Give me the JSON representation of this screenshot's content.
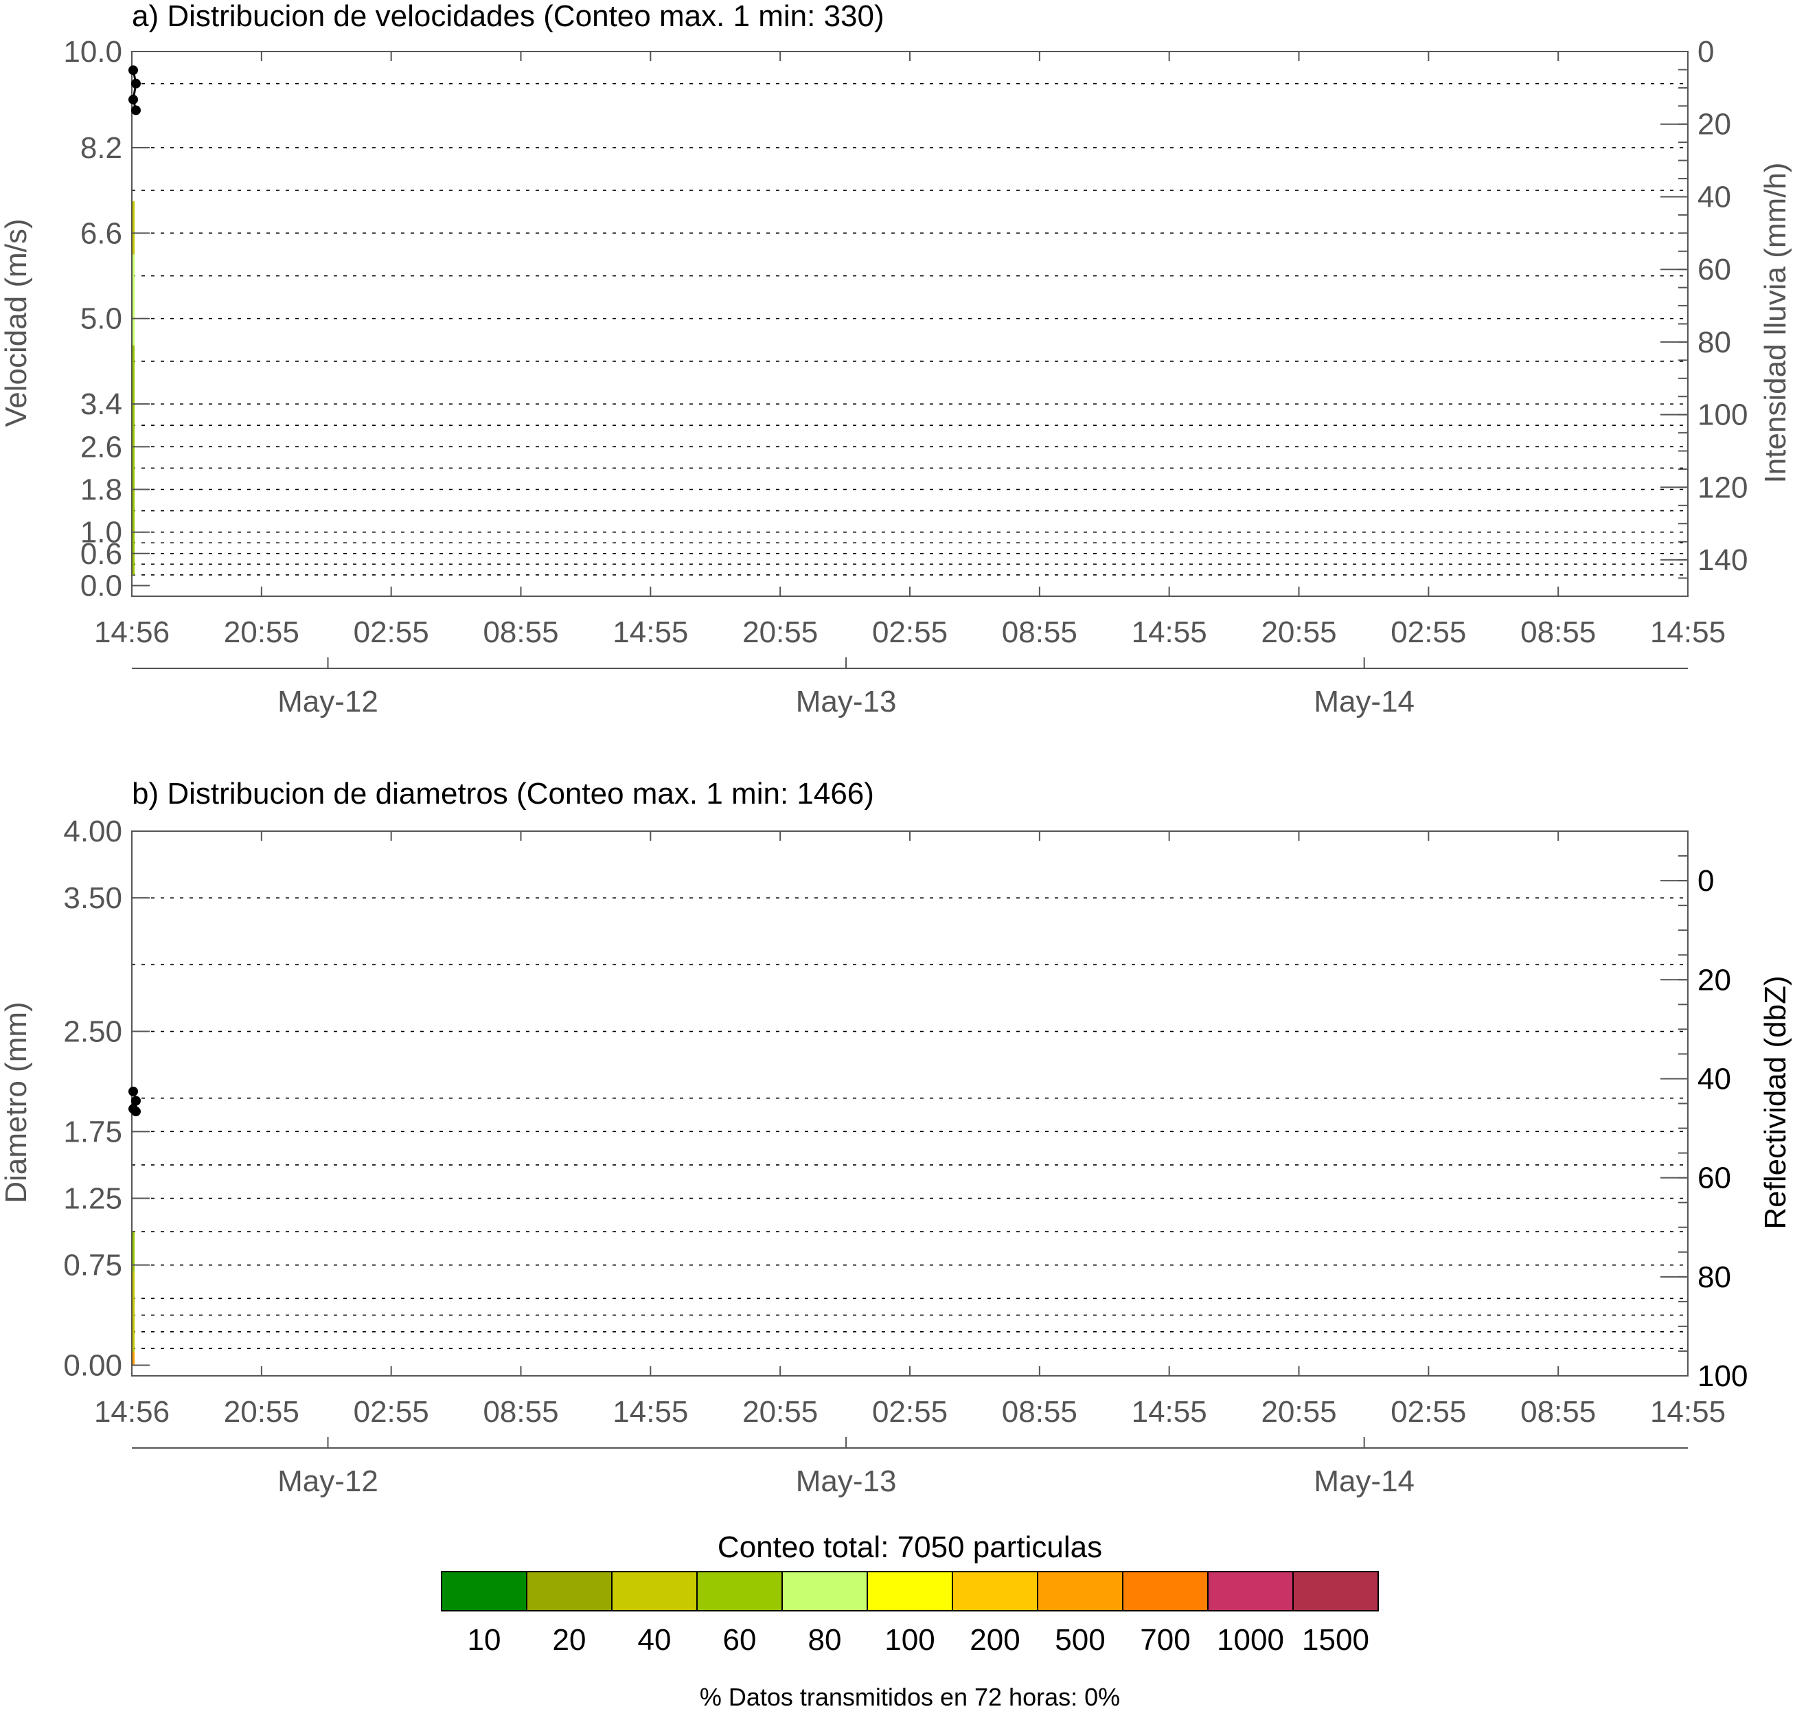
{
  "colors": {
    "axis_gray": "#555555",
    "text_gray": "#555555",
    "text_dark": "#000000",
    "grid": "#000000",
    "trace_dark": "#000000"
  },
  "chart_data": [
    {
      "type": "heatmap",
      "title": "a) Distribucion de velocidades (Conteo max. 1 min: 330)",
      "ylabel": "Velocidad (m/s)",
      "y2label": "Intensidad lluvia (mm/h)",
      "yticks": [
        {
          "label": "10.0",
          "value": 10.0
        },
        {
          "label": "8.2",
          "value": 8.2
        },
        {
          "label": "6.6",
          "value": 6.6
        },
        {
          "label": "5.0",
          "value": 5.0
        },
        {
          "label": "3.4",
          "value": 3.4
        },
        {
          "label": "2.6",
          "value": 2.6
        },
        {
          "label": "1.8",
          "value": 1.8
        },
        {
          "label": "1.0",
          "value": 1.0
        },
        {
          "label": "0.6",
          "value": 0.6
        },
        {
          "label": "0.0",
          "value": 0.0
        }
      ],
      "grid_values": [
        9.4,
        8.2,
        7.4,
        6.6,
        5.8,
        5.0,
        4.2,
        3.4,
        3.0,
        2.6,
        2.2,
        1.8,
        1.4,
        1.0,
        0.8,
        0.6,
        0.4,
        0.2
      ],
      "ylim": [
        -0.2,
        10.0
      ],
      "y2ticks": [
        "0",
        "20",
        "40",
        "60",
        "80",
        "100",
        "120",
        "140"
      ],
      "y2lim": [
        0,
        150
      ],
      "trace": [
        {
          "x": 0.0,
          "y": 9.65
        },
        {
          "x": 0.02,
          "y": 9.4
        },
        {
          "x": 0.0,
          "y": 9.1
        },
        {
          "x": 0.02,
          "y": 8.9
        }
      ],
      "distribution_strip": [
        {
          "y0": 0.2,
          "y1": 4.5,
          "color": "#99c700"
        },
        {
          "y0": 4.5,
          "y1": 6.2,
          "color": "#c8ff70"
        },
        {
          "y0": 6.2,
          "y1": 7.2,
          "color": "#c9c900"
        }
      ]
    },
    {
      "type": "heatmap",
      "title": "b) Distribucion de diametros (Conteo max. 1 min: 1466)",
      "ylabel": "Diametro (mm)",
      "y2label": "Reflectividad (dbZ)",
      "yticks": [
        {
          "label": "4.00",
          "value": 4.0
        },
        {
          "label": "3.50",
          "value": 3.5
        },
        {
          "label": "2.50",
          "value": 2.5
        },
        {
          "label": "1.75",
          "value": 1.75
        },
        {
          "label": "1.25",
          "value": 1.25
        },
        {
          "label": "0.75",
          "value": 0.75
        },
        {
          "label": "0.00",
          "value": 0.0
        }
      ],
      "grid_values": [
        3.5,
        3.0,
        2.5,
        2.0,
        1.75,
        1.5,
        1.25,
        1.0,
        0.75,
        0.5,
        0.375,
        0.25,
        0.125
      ],
      "ylim": [
        -0.08,
        4.0
      ],
      "y2ticks": [
        "0",
        "20",
        "40",
        "60",
        "80",
        "100"
      ],
      "y2lim": [
        -10,
        100
      ],
      "trace": [
        {
          "x": 0.0,
          "y": 2.05
        },
        {
          "x": 0.02,
          "y": 1.98
        },
        {
          "x": 0.0,
          "y": 1.92
        },
        {
          "x": 0.02,
          "y": 1.9
        }
      ],
      "distribution_strip": [
        {
          "y0": 0.0,
          "y1": 0.1,
          "color": "#ffa000"
        },
        {
          "y0": 0.1,
          "y1": 0.7,
          "color": "#c9c900"
        },
        {
          "y0": 0.7,
          "y1": 1.0,
          "color": "#99c700"
        }
      ]
    }
  ],
  "x_axis": {
    "time_labels": [
      "14:56",
      "20:55",
      "02:55",
      "08:55",
      "14:55",
      "20:55",
      "02:55",
      "08:55",
      "14:55",
      "20:55",
      "02:55",
      "08:55",
      "14:55"
    ],
    "date_labels": [
      "May-12",
      "May-13",
      "May-14"
    ],
    "date_positions": [
      0.126,
      0.459,
      0.792
    ]
  },
  "legend": {
    "title": "Conteo total: 7050 particulas",
    "bins": [
      {
        "label": "10",
        "color": "#008a00"
      },
      {
        "label": "20",
        "color": "#99a800"
      },
      {
        "label": "40",
        "color": "#c9c900"
      },
      {
        "label": "60",
        "color": "#99c700"
      },
      {
        "label": "80",
        "color": "#c8ff70"
      },
      {
        "label": "100",
        "color": "#ffff00"
      },
      {
        "label": "200",
        "color": "#ffc800"
      },
      {
        "label": "500",
        "color": "#ffa000"
      },
      {
        "label": "700",
        "color": "#ff7f00"
      },
      {
        "label": "1000",
        "color": "#c83264"
      },
      {
        "label": "1500",
        "color": "#b0304a"
      }
    ]
  },
  "footer": "% Datos transmitidos en 72 horas: 0%"
}
